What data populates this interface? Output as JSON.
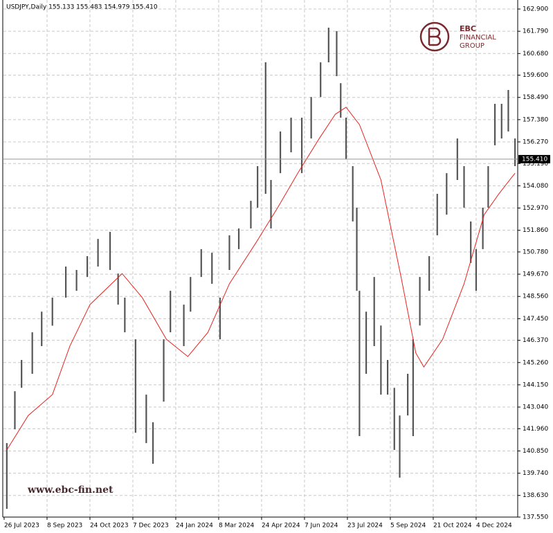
{
  "chart_data": {
    "type": "ohlc",
    "title": "USDJPY,Daily  155.133 155.483 154.979 155.410",
    "color": "#555555",
    "x": [
      2,
      8,
      13,
      21,
      28,
      36,
      46,
      54,
      62,
      70,
      79,
      85,
      90,
      98,
      106,
      111,
      119,
      124,
      134,
      139,
      147,
      155,
      161,
      168,
      175,
      184,
      189,
      195,
      199,
      206,
      214,
      222,
      229,
      236,
      242,
      248,
      251,
      255,
      260,
      263,
      265,
      270,
      276,
      281,
      286,
      291,
      295,
      301,
      305,
      310,
      317,
      323,
      330,
      338,
      343,
      348,
      352,
      357,
      361,
      366,
      371,
      376,
      381
    ],
    "high": [
      141.24,
      143.83,
      145.39,
      146.77,
      147.8,
      148.5,
      150.05,
      149.88,
      150.57,
      151.43,
      151.78,
      149.7,
      148.5,
      146.42,
      143.66,
      142.28,
      146.42,
      148.84,
      148.15,
      149.53,
      150.92,
      150.74,
      148.5,
      151.61,
      151.95,
      153.33,
      155.06,
      160.24,
      154.37,
      156.79,
      157.48,
      157.48,
      158.51,
      160.24,
      161.97,
      161.8,
      159.2,
      157.48,
      155.06,
      152.99,
      148.84,
      147.8,
      149.53,
      147.11,
      145.39,
      144.0,
      142.62,
      144.7,
      146.42,
      149.53,
      150.57,
      153.68,
      154.71,
      156.44,
      155.06,
      152.3,
      150.92,
      152.99,
      155.06,
      158.17,
      158.17,
      158.86,
      156.44
    ],
    "low": [
      137.96,
      141.93,
      144.0,
      144.7,
      146.08,
      147.1,
      148.5,
      148.84,
      149.53,
      150.05,
      149.88,
      148.15,
      146.77,
      141.76,
      141.24,
      140.21,
      143.31,
      146.77,
      146.08,
      147.8,
      149.53,
      149.19,
      146.42,
      149.88,
      150.92,
      151.95,
      152.99,
      153.68,
      151.95,
      154.71,
      155.75,
      154.71,
      156.44,
      158.51,
      160.24,
      159.55,
      157.48,
      155.4,
      152.3,
      148.84,
      141.59,
      144.7,
      146.08,
      143.66,
      143.66,
      140.9,
      139.52,
      142.62,
      141.59,
      147.11,
      148.84,
      151.61,
      152.64,
      154.37,
      152.99,
      150.23,
      148.84,
      150.92,
      152.99,
      156.1,
      156.44,
      156.79,
      155.06
    ],
    "ma": {
      "color": "#e8231f",
      "x": [
        2,
        18,
        36,
        49,
        64,
        88,
        103,
        121,
        137,
        152,
        168,
        188,
        204,
        219,
        235,
        247,
        255,
        265,
        281,
        296,
        307,
        313,
        327,
        343,
        358,
        369,
        381
      ],
      "values": [
        140.9,
        142.62,
        143.66,
        146.08,
        148.15,
        149.7,
        148.5,
        146.42,
        145.56,
        146.77,
        149.19,
        151.26,
        152.99,
        154.71,
        156.44,
        157.65,
        158.0,
        157.13,
        154.37,
        149.53,
        145.74,
        145.04,
        146.42,
        149.19,
        152.64,
        153.68,
        154.71
      ]
    },
    "last_price": {
      "value": 155.41,
      "label": "155.410"
    },
    "xlim": [
      -0.5,
      383
    ],
    "ylim": [
      137.55,
      163.35
    ],
    "grid": true,
    "yticks": [
      {
        "value": 162.9,
        "label": "162.900"
      },
      {
        "value": 161.79,
        "label": "161.790"
      },
      {
        "value": 160.68,
        "label": "160.680"
      },
      {
        "value": 159.6,
        "label": "159.600"
      },
      {
        "value": 158.49,
        "label": "158.490"
      },
      {
        "value": 157.38,
        "label": "157.380"
      },
      {
        "value": 156.27,
        "label": "156.270"
      },
      {
        "value": 155.19,
        "label": "155.190"
      },
      {
        "value": 154.08,
        "label": "154.080"
      },
      {
        "value": 152.97,
        "label": "152.970"
      },
      {
        "value": 151.86,
        "label": "151.860"
      },
      {
        "value": 150.78,
        "label": "150.780"
      },
      {
        "value": 149.67,
        "label": "149.670"
      },
      {
        "value": 148.56,
        "label": "148.560"
      },
      {
        "value": 147.45,
        "label": "147.450"
      },
      {
        "value": 146.37,
        "label": "146.370"
      },
      {
        "value": 145.26,
        "label": "145.260"
      },
      {
        "value": 144.15,
        "label": "144.150"
      },
      {
        "value": 143.04,
        "label": "143.040"
      },
      {
        "value": 141.96,
        "label": "141.960"
      },
      {
        "value": 140.85,
        "label": "140.850"
      },
      {
        "value": 139.74,
        "label": "139.740"
      },
      {
        "value": 138.63,
        "label": "138.630"
      },
      {
        "value": 137.55,
        "label": "137.550"
      }
    ],
    "xticks": [
      {
        "value": 0,
        "label": "26 Jul 2023"
      },
      {
        "value": 32,
        "label": "8 Sep 2023"
      },
      {
        "value": 64,
        "label": "24 Oct 2023"
      },
      {
        "value": 96,
        "label": "7 Dec 2023"
      },
      {
        "value": 128,
        "label": "24 Jan 2024"
      },
      {
        "value": 160,
        "label": "8 Mar 2024"
      },
      {
        "value": 192,
        "label": "24 Apr 2024"
      },
      {
        "value": 224,
        "label": "7 Jun 2024"
      },
      {
        "value": 256,
        "label": "23 Jul 2024"
      },
      {
        "value": 288,
        "label": "5 Sep 2024"
      },
      {
        "value": 320,
        "label": "21 Oct 2024"
      },
      {
        "value": 352,
        "label": "4 Dec 2024"
      }
    ]
  },
  "watermark": "www.ebc-fin.net",
  "logo": {
    "line1": "EBC",
    "line2": "FINANCIAL",
    "line3": "GROUP"
  }
}
